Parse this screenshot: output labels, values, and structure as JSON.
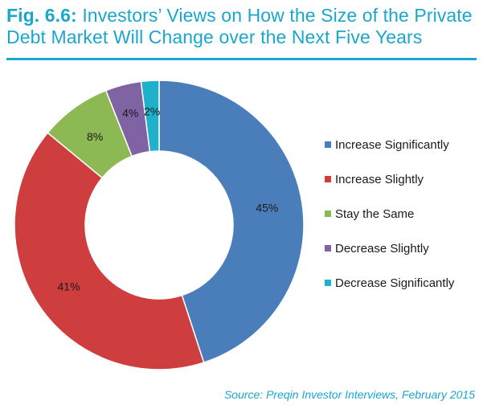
{
  "title": {
    "fig_label": "Fig. 6.6:",
    "line1": "Investors’ Views on How the Size of the Private",
    "line2": "Debt Market Will Change over the Next Five Years"
  },
  "source": "Source: Preqin Investor Interviews, February 2015",
  "chart_data": {
    "type": "pie",
    "title": "Investors’ Views on How the Size of the Private Debt Market Will Change over the Next Five Years",
    "donut": true,
    "legend_position": "right",
    "categories": [
      "Increase Significantly",
      "Increase Slightly",
      "Stay the Same",
      "Decrease Slightly",
      "Decrease Significantly"
    ],
    "values": [
      45,
      41,
      8,
      4,
      2
    ],
    "labels": [
      "45%",
      "41%",
      "8%",
      "4%",
      "2%"
    ],
    "colors": [
      "#4a7ebb",
      "#cf3e3e",
      "#8db954",
      "#8063a3",
      "#1fb1c9"
    ]
  }
}
